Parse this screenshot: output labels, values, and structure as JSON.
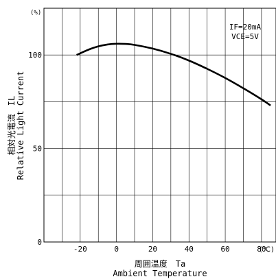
{
  "chart_data": {
    "type": "line",
    "xlabel_jp": "周囲温度　Ta",
    "xlabel_en": "Ambient Temperature",
    "ylabel_jp": "相対光電流　IL",
    "ylabel_en": "Relative Light Current",
    "y_unit": "(%)",
    "x_unit": "(℃)",
    "conditions": [
      "IF=20mA",
      "VCE=5V"
    ],
    "x_ticks": [
      -20,
      0,
      20,
      40,
      60,
      80
    ],
    "y_ticks": [
      0,
      50,
      100
    ],
    "xlim": [
      -40,
      88
    ],
    "ylim": [
      0,
      125
    ],
    "grid": true,
    "series": [
      {
        "x": [
          -22,
          -15,
          -10,
          -5,
          0,
          5,
          10,
          20,
          30,
          40,
          50,
          60,
          70,
          80,
          85
        ],
        "y": [
          100,
          103,
          104.6,
          105.6,
          106,
          105.9,
          105.4,
          103.4,
          100.6,
          97,
          92.6,
          87.7,
          82.2,
          76.3,
          73
        ]
      }
    ]
  }
}
